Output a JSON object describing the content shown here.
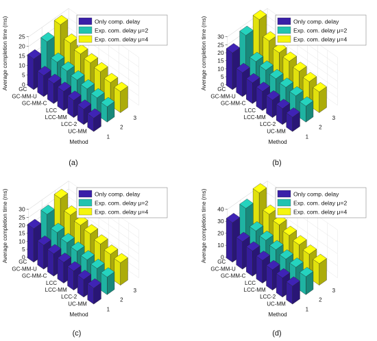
{
  "captions": [
    "(a)",
    "(b)",
    "(c)",
    "(d)"
  ],
  "chart_data": [
    {
      "type": "bar",
      "title": "",
      "xlabel": "",
      "ylabel": "Average completion time (ms)",
      "method_label": "Method",
      "categories": [
        "GC",
        "GC-MM-U",
        "GC-MM-C",
        "LCC",
        "LCC-MM",
        "LCC-2",
        "UC-MM"
      ],
      "depth_ticks": [
        "1",
        "2",
        "3"
      ],
      "yticks": [
        0,
        5,
        10,
        15,
        20,
        25
      ],
      "ylim": [
        0,
        25
      ],
      "series": [
        {
          "name": "Only comp. delay",
          "color": "#3a20a8",
          "values": [
            16,
            11,
            10.5,
            10,
            9,
            8,
            7
          ]
        },
        {
          "name": "Exp. com. delay μ=2",
          "color": "#22c3b0",
          "values": [
            20,
            13,
            12,
            11,
            10,
            9,
            8
          ]
        },
        {
          "name": "Exp. com. delay μ=4",
          "color": "#f5f50e",
          "values": [
            24,
            18,
            16,
            15,
            14,
            12,
            11
          ]
        }
      ],
      "legend_position": "top-right",
      "grid": true
    },
    {
      "type": "bar",
      "title": "",
      "xlabel": "",
      "ylabel": "Average completion time (ms)",
      "method_label": "Method",
      "categories": [
        "GC",
        "GC-MM-U",
        "GC-MM-C",
        "LCC",
        "LCC-MM",
        "LCC-2",
        "UC-MM"
      ],
      "depth_ticks": [
        "1",
        "2",
        "3"
      ],
      "yticks": [
        0,
        5,
        10,
        15,
        20,
        25,
        30
      ],
      "ylim": [
        0,
        30
      ],
      "series": [
        {
          "name": "Only comp. delay",
          "color": "#3a20a8",
          "values": [
            23,
            15,
            13,
            12,
            11,
            10,
            9
          ]
        },
        {
          "name": "Exp. com. delay μ=2",
          "color": "#22c3b0",
          "values": [
            28,
            16,
            15,
            14,
            13,
            12,
            10
          ]
        },
        {
          "name": "Exp. com. delay μ=4",
          "color": "#f5f50e",
          "values": [
            32,
            23,
            20,
            19,
            17,
            15,
            13
          ]
        }
      ],
      "legend_position": "top-right",
      "grid": true
    },
    {
      "type": "bar",
      "title": "",
      "xlabel": "",
      "ylabel": "Average completion time (ms)",
      "method_label": "Method",
      "categories": [
        "GC",
        "GC-MM-U",
        "GC-MM-C",
        "LCC",
        "LCC-MM",
        "LCC-2",
        "UC-MM"
      ],
      "depth_ticks": [
        "1",
        "2",
        "3"
      ],
      "yticks": [
        0,
        5,
        10,
        15,
        20,
        25,
        30
      ],
      "ylim": [
        0,
        30
      ],
      "series": [
        {
          "name": "Only comp. delay",
          "color": "#3a20a8",
          "values": [
            21,
            15,
            14,
            13,
            12,
            11,
            10
          ]
        },
        {
          "name": "Exp. com. delay μ=2",
          "color": "#22c3b0",
          "values": [
            24,
            17,
            15,
            14,
            13,
            12,
            11
          ]
        },
        {
          "name": "Exp. com. delay μ=4",
          "color": "#f5f50e",
          "values": [
            28,
            22,
            20,
            19,
            17,
            15,
            14
          ]
        }
      ],
      "legend_position": "top-right",
      "grid": true
    },
    {
      "type": "bar",
      "title": "",
      "xlabel": "",
      "ylabel": "Average completion time (ms)",
      "method_label": "Method",
      "categories": [
        "GC",
        "GC-MM-U",
        "GC-MM-C",
        "LCC",
        "LCC-MM",
        "LCC-2",
        "UC-MM"
      ],
      "depth_ticks": [
        "1",
        "2",
        "3"
      ],
      "yticks": [
        0,
        10,
        20,
        30,
        40
      ],
      "ylim": [
        0,
        40
      ],
      "series": [
        {
          "name": "Only comp. delay",
          "color": "#3a20a8",
          "values": [
            33,
            23,
            21,
            19,
            17,
            16,
            15
          ]
        },
        {
          "name": "Exp. com. delay μ=2",
          "color": "#22c3b0",
          "values": [
            37,
            24,
            22,
            20,
            18,
            17,
            15
          ]
        },
        {
          "name": "Exp. com. delay μ=4",
          "color": "#f5f50e",
          "values": [
            42,
            30,
            27,
            24,
            22,
            20,
            18
          ]
        }
      ],
      "legend_position": "top-right",
      "grid": true
    }
  ]
}
